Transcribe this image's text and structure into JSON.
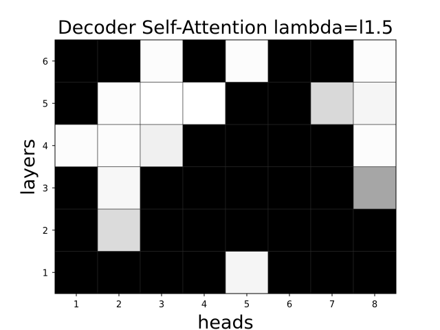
{
  "chart_data": {
    "type": "heatmap",
    "title": "Decoder Self-Attention lambda=l1.5",
    "xlabel": "heads",
    "ylabel": "layers",
    "x_categories": [
      "1",
      "2",
      "3",
      "4",
      "5",
      "6",
      "7",
      "8"
    ],
    "y_categories": [
      "1",
      "2",
      "3",
      "4",
      "5",
      "6"
    ],
    "colormap": "gray",
    "value_range": [
      0,
      1
    ],
    "grid": false,
    "rows": [
      {
        "layer": "1",
        "values": [
          0,
          0,
          0,
          0,
          0.96,
          0,
          0,
          0
        ]
      },
      {
        "layer": "2",
        "values": [
          0,
          0.86,
          0,
          0,
          0,
          0,
          0,
          0
        ]
      },
      {
        "layer": "3",
        "values": [
          0,
          0.97,
          0,
          0,
          0,
          0,
          0,
          0.65
        ]
      },
      {
        "layer": "4",
        "values": [
          0.99,
          0.99,
          0.94,
          0,
          0,
          0,
          0,
          0.99
        ]
      },
      {
        "layer": "5",
        "values": [
          0,
          0.99,
          1,
          1,
          0,
          0,
          0.85,
          0.96
        ]
      },
      {
        "layer": "6",
        "values": [
          0,
          0,
          0.99,
          0,
          0.99,
          0,
          0,
          0.99
        ]
      }
    ]
  }
}
